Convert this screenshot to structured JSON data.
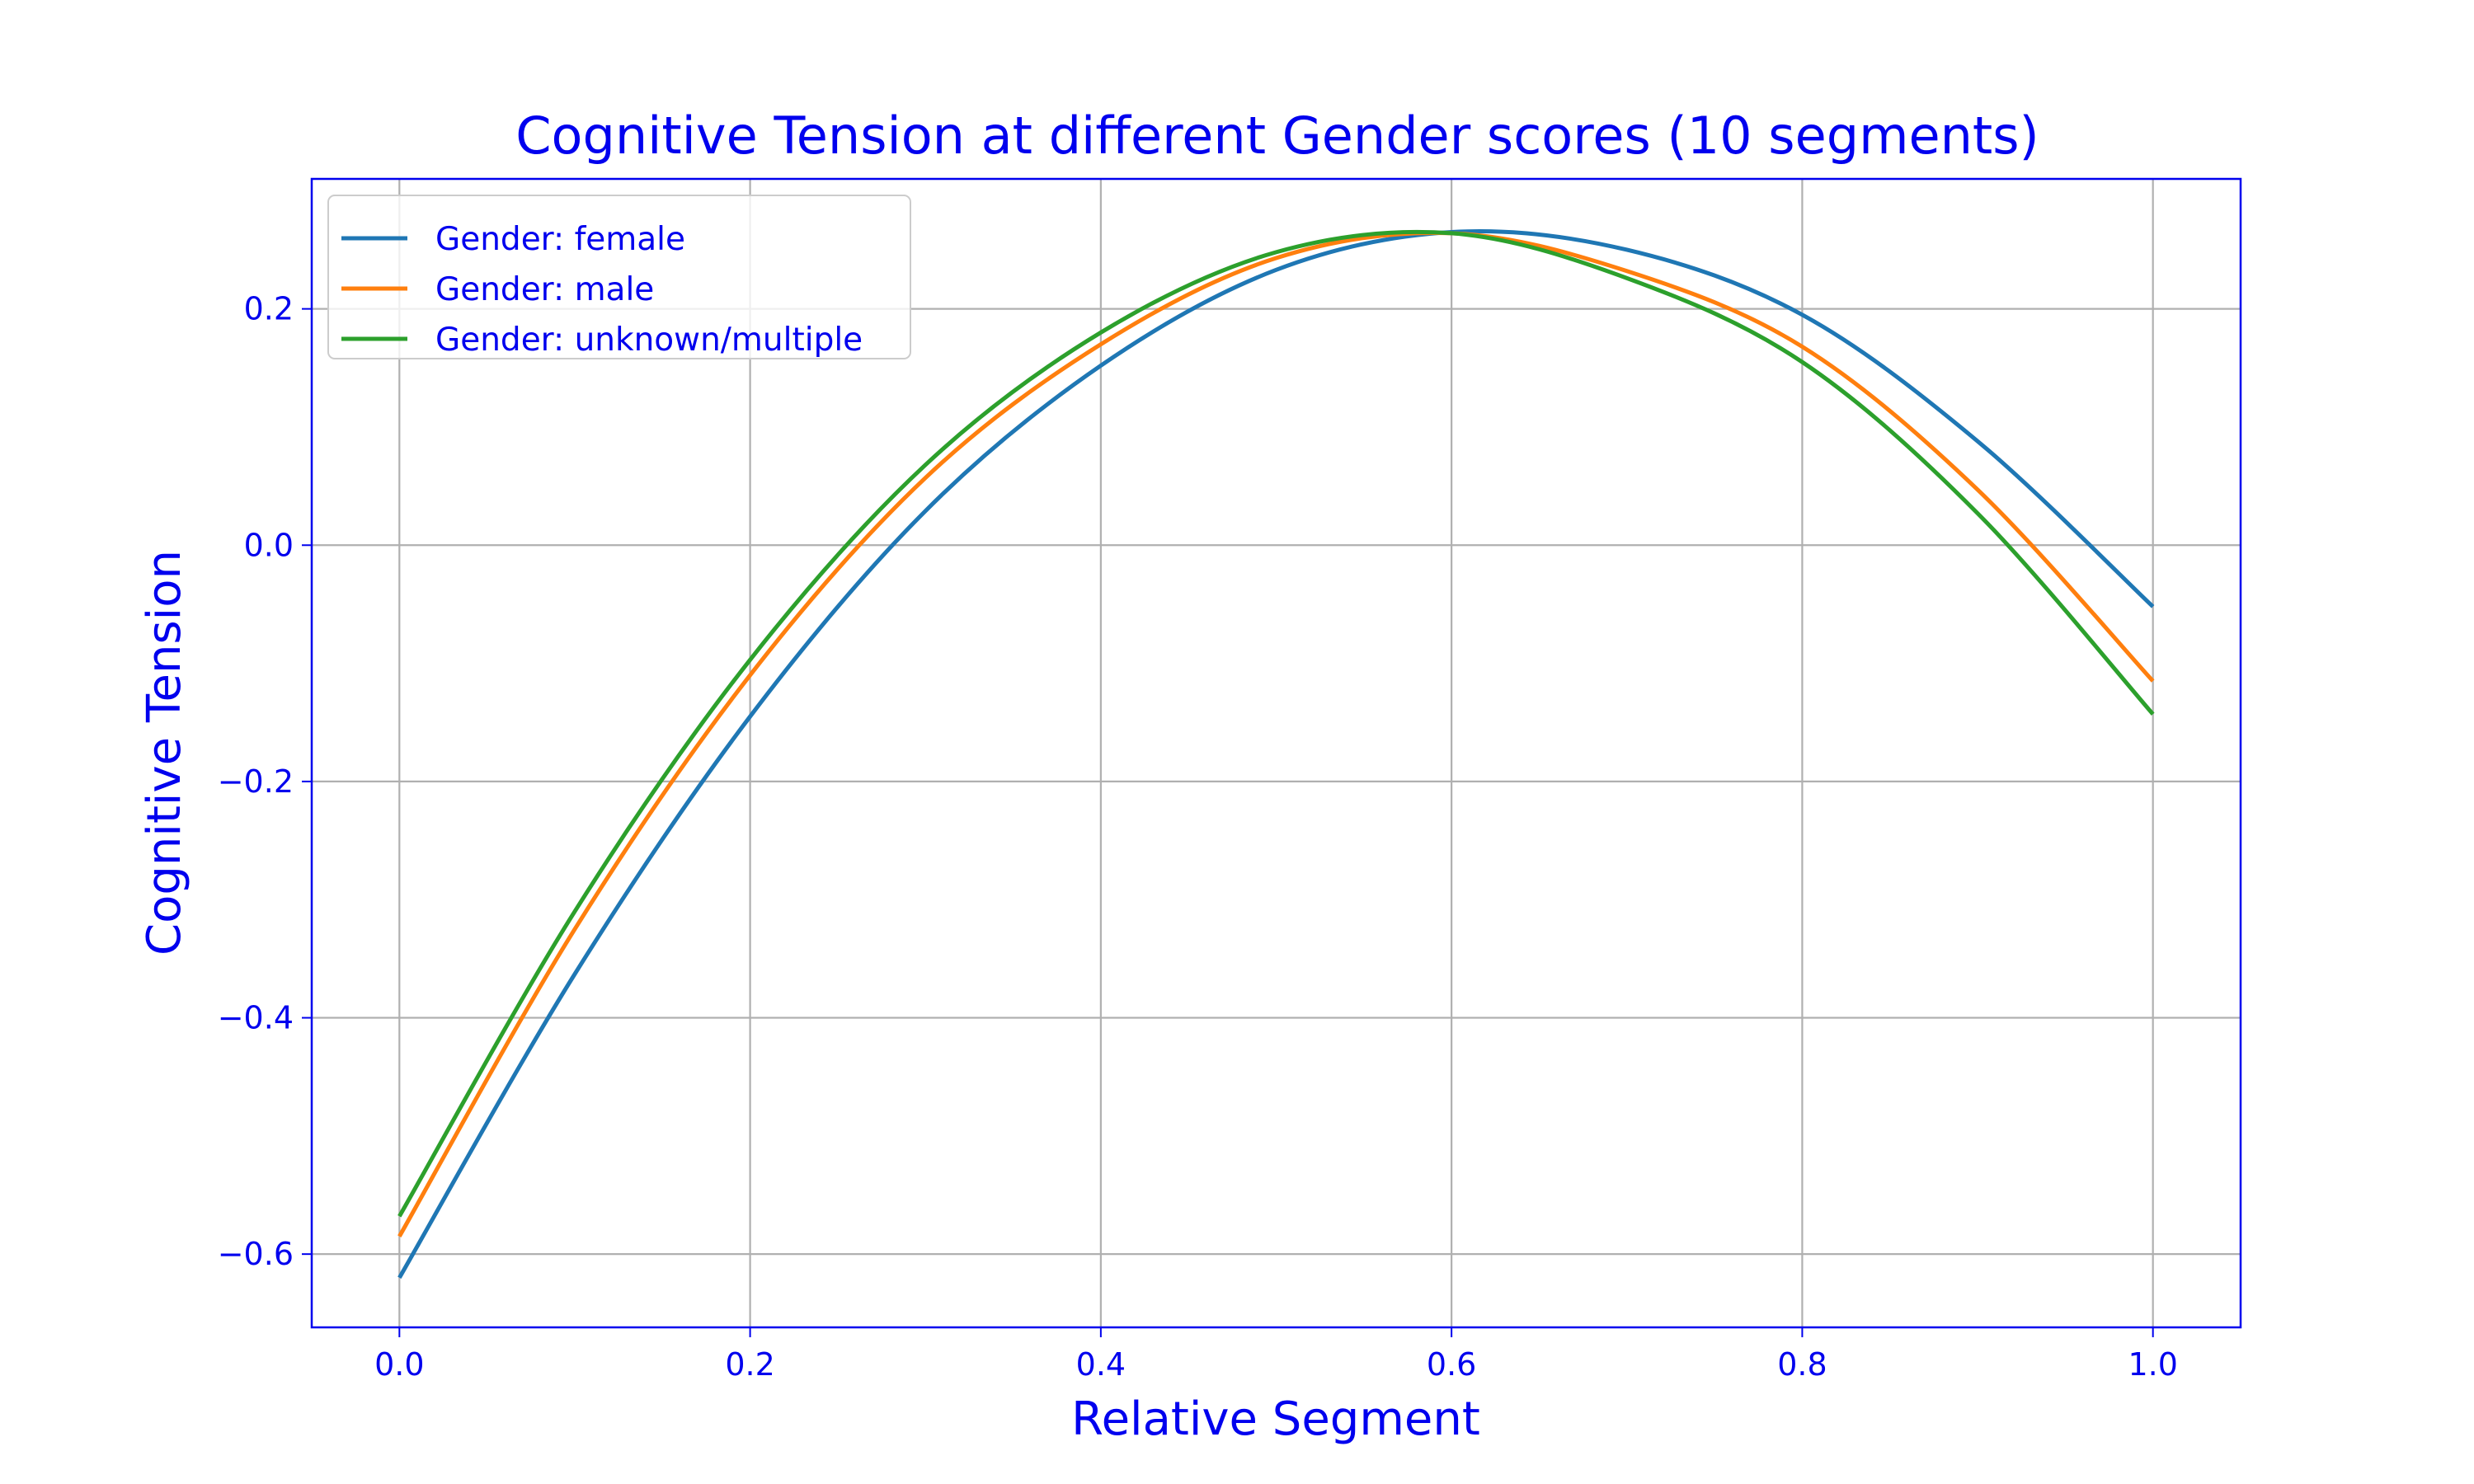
{
  "chart_data": {
    "type": "line",
    "title": "Cognitive Tension at different Gender scores (10 segments)",
    "xlabel": "Relative Segment",
    "ylabel": "Cognitive Tension",
    "xlim": [
      -0.05,
      1.05
    ],
    "ylim": [
      -0.662,
      0.31
    ],
    "xticks": [
      0.0,
      0.2,
      0.4,
      0.6,
      0.8,
      1.0
    ],
    "xtick_labels": [
      "0.0",
      "0.2",
      "0.4",
      "0.6",
      "0.8",
      "1.0"
    ],
    "yticks": [
      -0.6,
      -0.4,
      -0.2,
      0.0,
      0.2
    ],
    "ytick_labels": [
      "−0.6",
      "−0.4",
      "−0.2",
      "0.0",
      "0.2"
    ],
    "grid": true,
    "legend_position": "top-left",
    "text_color": "#0000ee",
    "series": [
      {
        "name": "Gender: female",
        "color": "#1f77b4",
        "x": [
          0.0,
          0.1,
          0.2,
          0.3,
          0.4,
          0.5,
          0.6,
          0.7,
          0.8,
          0.9,
          1.0
        ],
        "y": [
          -0.62,
          -0.363,
          -0.145,
          0.029,
          0.152,
          0.233,
          0.265,
          0.25,
          0.195,
          0.088,
          -0.052
        ]
      },
      {
        "name": "Gender: male",
        "color": "#ff7f0e",
        "x": [
          0.0,
          0.1,
          0.2,
          0.3,
          0.4,
          0.5,
          0.6,
          0.7,
          0.8,
          0.9,
          1.0
        ],
        "y": [
          -0.585,
          -0.325,
          -0.11,
          0.057,
          0.17,
          0.243,
          0.264,
          0.232,
          0.168,
          0.047,
          -0.115
        ]
      },
      {
        "name": "Gender: unknown/multiple",
        "color": "#2ca02c",
        "x": [
          0.0,
          0.1,
          0.2,
          0.3,
          0.4,
          0.5,
          0.6,
          0.7,
          0.8,
          0.9,
          1.0
        ],
        "y": [
          -0.568,
          -0.31,
          -0.097,
          0.068,
          0.18,
          0.248,
          0.264,
          0.226,
          0.155,
          0.027,
          -0.143
        ]
      }
    ]
  }
}
